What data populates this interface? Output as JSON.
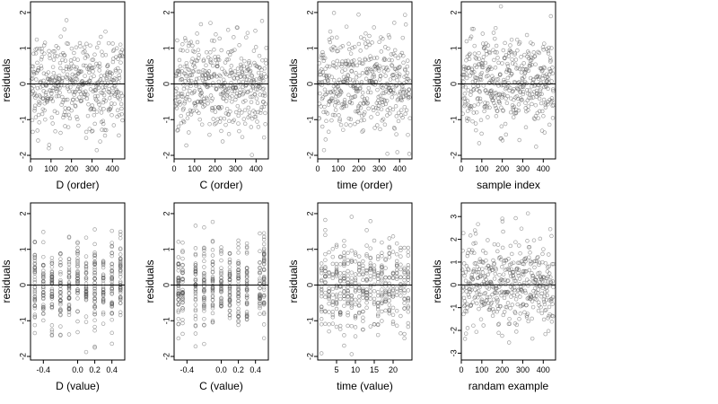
{
  "chart_data": [
    {
      "type": "scatter",
      "xlabel": "D (order)",
      "ylabel": "residuals",
      "xlim": [
        0,
        460
      ],
      "ylim": [
        -2.1,
        2.3
      ],
      "xticks": [
        0,
        100,
        200,
        300,
        400
      ],
      "xtick_labels": [
        "0",
        "100",
        "200",
        "300",
        "400"
      ],
      "yticks": [
        -2,
        -1,
        0,
        1,
        2
      ],
      "ytick_labels": [
        "-2",
        "-1",
        "0",
        "1",
        "2"
      ],
      "reference_line": 0,
      "marker": "open circle",
      "n_points": 450,
      "y_range_observed": [
        -2.0,
        2.1
      ]
    },
    {
      "type": "scatter",
      "xlabel": "C (order)",
      "ylabel": "residuals",
      "xlim": [
        0,
        460
      ],
      "ylim": [
        -2.1,
        2.3
      ],
      "xticks": [
        0,
        100,
        200,
        300,
        400
      ],
      "xtick_labels": [
        "0",
        "100",
        "200",
        "300",
        "400"
      ],
      "yticks": [
        -2,
        -1,
        0,
        1,
        2
      ],
      "ytick_labels": [
        "-2",
        "-1",
        "0",
        "1",
        "2"
      ],
      "reference_line": 0,
      "marker": "open circle",
      "n_points": 450,
      "y_range_observed": [
        -2.0,
        2.2
      ]
    },
    {
      "type": "scatter",
      "xlabel": "time (order)",
      "ylabel": "residuals",
      "xlim": [
        0,
        460
      ],
      "ylim": [
        -2.1,
        2.3
      ],
      "xticks": [
        0,
        100,
        200,
        300,
        400
      ],
      "xtick_labels": [
        "0",
        "100",
        "200",
        "300",
        "400"
      ],
      "yticks": [
        -2,
        -1,
        0,
        1,
        2
      ],
      "ytick_labels": [
        "-2",
        "-1",
        "0",
        "1",
        "2"
      ],
      "reference_line": 0,
      "marker": "open circle",
      "n_points": 450,
      "y_range_observed": [
        -2.0,
        2.2
      ]
    },
    {
      "type": "scatter",
      "xlabel": "sample index",
      "ylabel": "residuals",
      "xlim": [
        0,
        460
      ],
      "ylim": [
        -2.1,
        2.3
      ],
      "xticks": [
        0,
        100,
        200,
        300,
        400
      ],
      "xtick_labels": [
        "0",
        "100",
        "200",
        "300",
        "400"
      ],
      "yticks": [
        -2,
        -1,
        0,
        1,
        2
      ],
      "ytick_labels": [
        "-2",
        "-1",
        "0",
        "1",
        "2"
      ],
      "reference_line": 0,
      "marker": "open circle",
      "n_points": 450,
      "y_range_observed": [
        -2.0,
        2.2
      ]
    },
    {
      "type": "scatter",
      "xlabel": "D (value)",
      "ylabel": "residuals",
      "xlim": [
        -0.55,
        0.55
      ],
      "ylim": [
        -2.1,
        2.3
      ],
      "xticks": [
        -0.4,
        0.0,
        0.2,
        0.4
      ],
      "xtick_labels": [
        "-0.4",
        "0.0",
        "0.2",
        "0.4"
      ],
      "yticks": [
        -2,
        -1,
        0,
        1,
        2
      ],
      "ytick_labels": [
        "-2",
        "-1",
        "0",
        "1",
        "2"
      ],
      "reference_line": 0,
      "marker": "open circle",
      "n_points": 450,
      "x_levels": [
        -0.5,
        -0.4,
        -0.3,
        -0.2,
        -0.1,
        0.0,
        0.1,
        0.2,
        0.3,
        0.4,
        0.5
      ],
      "y_range_observed": [
        -2.0,
        2.1
      ]
    },
    {
      "type": "scatter",
      "xlabel": "C (value)",
      "ylabel": "residuals",
      "xlim": [
        -0.55,
        0.55
      ],
      "ylim": [
        -2.1,
        2.3
      ],
      "xticks": [
        -0.4,
        0.0,
        0.2,
        0.4
      ],
      "xtick_labels": [
        "-0.4",
        "0.0",
        "0.2",
        "0.4"
      ],
      "yticks": [
        -2,
        -1,
        0,
        1,
        2
      ],
      "ytick_labels": [
        "-2",
        "-1",
        "0",
        "1",
        "2"
      ],
      "reference_line": 0,
      "marker": "open circle",
      "n_points": 450,
      "x_levels": [
        -0.5,
        -0.45,
        -0.3,
        -0.2,
        -0.1,
        0.0,
        0.1,
        0.2,
        0.3,
        0.45,
        0.5
      ],
      "y_range_observed": [
        -2.0,
        2.2
      ]
    },
    {
      "type": "scatter",
      "xlabel": "time (value)",
      "ylabel": "residuals",
      "xlim": [
        0,
        25
      ],
      "ylim": [
        -2.1,
        2.3
      ],
      "xticks": [
        5,
        10,
        15,
        20
      ],
      "xtick_labels": [
        "5",
        "10",
        "15",
        "20"
      ],
      "yticks": [
        -2,
        -1,
        0,
        1,
        2
      ],
      "ytick_labels": [
        "-2",
        "-1",
        "0",
        "1",
        "2"
      ],
      "reference_line": 0,
      "marker": "open circle",
      "n_points": 450,
      "x_levels": [
        1,
        2,
        3,
        4,
        5,
        6,
        7,
        8,
        9,
        10,
        11,
        12,
        13,
        14,
        15,
        16,
        17,
        18,
        19,
        20,
        21,
        22,
        23,
        24
      ],
      "y_range_observed": [
        -2.0,
        2.2
      ]
    },
    {
      "type": "scatter",
      "xlabel": "randam example",
      "ylabel": "residuals",
      "xlim": [
        0,
        460
      ],
      "ylim": [
        -3.3,
        3.6
      ],
      "xticks": [
        0,
        100,
        200,
        300,
        400
      ],
      "xtick_labels": [
        "0",
        "100",
        "200",
        "300",
        "400"
      ],
      "yticks": [
        -3,
        -2,
        -1,
        0,
        1,
        2,
        3
      ],
      "ytick_labels": [
        "-3",
        "-2",
        "-1",
        "0",
        "1",
        "2",
        "3"
      ],
      "reference_line": 0,
      "marker": "open circle",
      "n_points": 450,
      "y_range_observed": [
        -3.1,
        3.3
      ]
    }
  ]
}
